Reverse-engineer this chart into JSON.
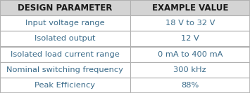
{
  "header": [
    "DESIGN PARAMETER",
    "EXAMPLE VALUE"
  ],
  "rows": [
    [
      "Input voltage range",
      "18 V to 32 V"
    ],
    [
      "Isolated output",
      "12 V"
    ],
    [
      "Isolated load current range",
      "0 mA to 400 mA"
    ],
    [
      "Nominal switching frequency",
      "300 kHz"
    ],
    [
      "Peak Efficiency",
      "88%"
    ]
  ],
  "header_bg": "#d4d4d4",
  "row_bg": "#ffffff",
  "border_color": "#b0b0b0",
  "header_text_color": "#1a1a1a",
  "row_text_color": "#3a6b8a",
  "col_split": 0.52,
  "header_fontsize": 8.5,
  "row_fontsize": 8.2,
  "fig_width": 3.55,
  "fig_height": 1.33,
  "dpi": 100
}
